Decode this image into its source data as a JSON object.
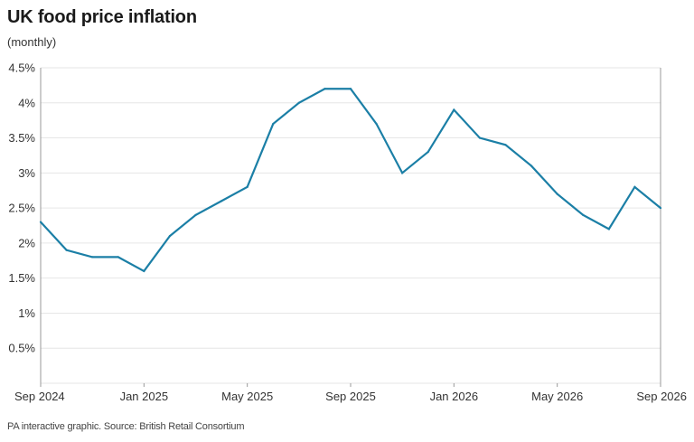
{
  "header": {
    "title": "UK food price inflation",
    "subtitle": "(monthly)"
  },
  "footer": {
    "source": "PA interactive graphic. Source: British Retail Consortium"
  },
  "colors": {
    "line": "#1b7fa6",
    "grid": "#e6e6e6",
    "axis": "#999999"
  },
  "chart_data": {
    "type": "line",
    "title": "UK food price inflation",
    "subtitle": "(monthly)",
    "xlabel": "",
    "ylabel": "",
    "ylim": [
      0,
      4.5
    ],
    "grid": true,
    "legend": "none",
    "y_ticks": [
      0.5,
      1,
      1.5,
      2,
      2.5,
      3,
      3.5,
      4,
      4.5
    ],
    "y_tick_labels": [
      "0.5%",
      "1%",
      "1.5%",
      "2%",
      "2.5%",
      "3%",
      "3.5%",
      "4%",
      "4.5%"
    ],
    "x_tick_labels": [
      "Sep 2024",
      "Jan 2025",
      "May 2025",
      "Sep 2025",
      "Jan 2026",
      "May 2026",
      "Sep 2026"
    ],
    "x": [
      "Sep 2024",
      "Oct 2024",
      "Nov 2024",
      "Dec 2024",
      "Jan 2025",
      "Feb 2025",
      "Mar 2025",
      "Apr 2025",
      "May 2025",
      "Jun 2025",
      "Jul 2025",
      "Aug 2025",
      "Sep 2025",
      "Oct 2025",
      "Nov 2025",
      "Dec 2025",
      "Jan 2026",
      "Feb 2026",
      "Mar 2026",
      "Apr 2026",
      "May 2026",
      "Jun 2026",
      "Jul 2026",
      "Aug 2026",
      "Sep 2026"
    ],
    "series": [
      {
        "values": [
          2.3,
          1.9,
          1.8,
          1.8,
          1.6,
          2.1,
          2.4,
          2.6,
          2.8,
          3.7,
          4.0,
          4.2,
          4.2,
          3.7,
          3.0,
          3.3,
          3.9,
          3.5,
          3.4,
          3.1,
          2.7,
          2.4,
          2.2,
          2.8,
          2.5
        ]
      }
    ]
  }
}
